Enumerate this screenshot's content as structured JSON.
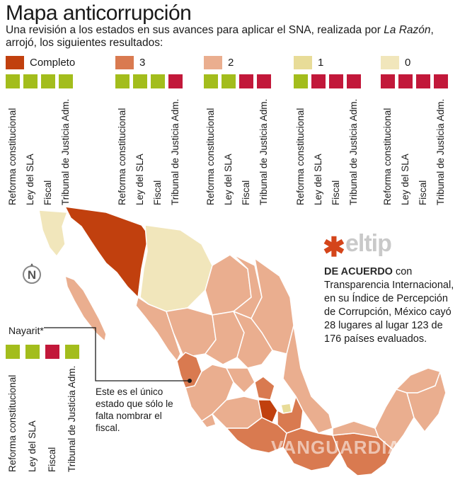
{
  "title": "Mapa anticorrupción",
  "subtitle_part1": "Una revisión a los estados en sus avances para aplicar el SNA, realizada por ",
  "subtitle_italic": "La Razón",
  "subtitle_part2": ", arrojó, los siguientes resultados:",
  "colors": {
    "completo": "#c1400e",
    "level3": "#d97a50",
    "level2": "#eaae8f",
    "level1": "#e8dc98",
    "level0": "#f1e6bb",
    "check_green": "#a3bd1c",
    "check_red": "#c2183a"
  },
  "legend": [
    {
      "label": "Completo",
      "color": "#c1400e",
      "checks": [
        "green",
        "green",
        "green",
        "green"
      ]
    },
    {
      "label": "3",
      "color": "#d97a50",
      "checks": [
        "green",
        "green",
        "green",
        "red"
      ]
    },
    {
      "label": "2",
      "color": "#eaae8f",
      "checks": [
        "green",
        "green",
        "red",
        "red"
      ]
    },
    {
      "label": "1",
      "color": "#e8dc98",
      "checks": [
        "green",
        "red",
        "red",
        "red"
      ]
    },
    {
      "label": "0",
      "color": "#f1e6bb",
      "checks": [
        "red",
        "red",
        "red",
        "red"
      ]
    }
  ],
  "criteria": [
    "Reforma constitucional",
    "Ley del SLA",
    "Fiscal",
    "Tribunal de Justicia Adm."
  ],
  "tip": {
    "logo": "eltip",
    "lead": "DE ACUERDO",
    "text": " con Transparencia Internacional, en su Índice de Percepción de Corrupción, México cayó 28 lugares al lugar 123 de 176 países evaluados."
  },
  "nayarit": {
    "label": "Nayarit*",
    "checks": [
      "green",
      "green",
      "red",
      "green"
    ],
    "note": "Este es el único estado que sólo le falta nombrar el fiscal."
  },
  "compass_letter": "N",
  "watermark": "VANGUARDIA"
}
